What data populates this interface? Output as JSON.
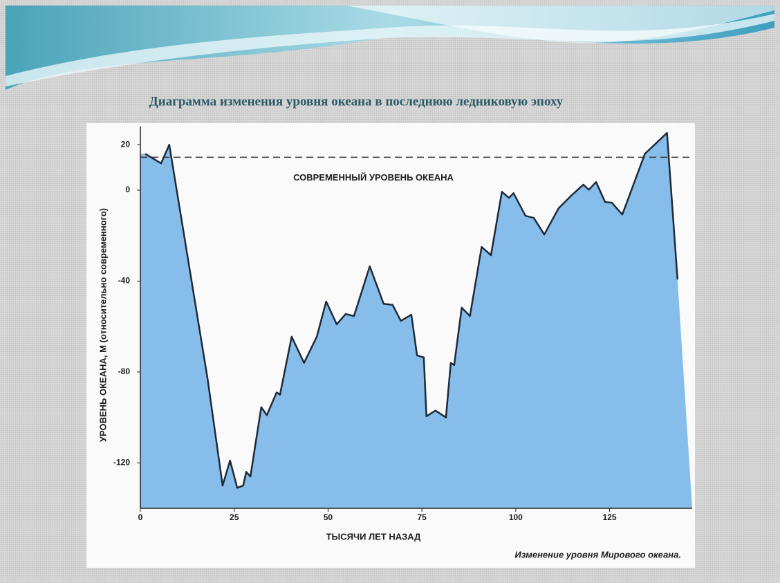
{
  "chart_data": {
    "type": "area",
    "title": "Диаграмма изменения уровня океана в последнюю ледниковую эпоху",
    "x_label": "ТЫСЯЧИ ЛЕТ НАЗАД",
    "y_label": "УРОВЕНЬ ОКЕАНА, М (относительно современного)",
    "caption": "Изменение уровня Мирового океана.",
    "reference_line": {
      "value": 14.5,
      "label": "СОВРЕМЕННЫЙ УРОВЕНЬ ОКЕАНА"
    },
    "x": [
      1.3,
      5.5,
      7.7,
      17.9,
      21.9,
      23.9,
      25.8,
      27.4,
      28.2,
      29.3,
      32.2,
      33.7,
      36.3,
      37.2,
      40.3,
      43.6,
      47,
      49.5,
      52.3,
      54.7,
      56.9,
      61.1,
      64.8,
      67.2,
      69.4,
      72.2,
      73.7,
      75.5,
      76.2,
      78.6,
      81.4,
      82.7,
      83.6,
      85.6,
      87.8,
      90.9,
      93.4,
      96.3,
      98.2,
      99.4,
      102.6,
      104.8,
      107.6,
      111.4,
      114.7,
      118,
      119.5,
      121.4,
      123.8,
      125.6,
      128.4,
      134.4,
      140.3,
      143.1
    ],
    "values": [
      16,
      11.8,
      20,
      -83,
      -130,
      -119,
      -131,
      -130,
      -124,
      -126,
      -95.5,
      -99,
      -89,
      -90,
      -64.5,
      -76,
      -64.5,
      -49,
      -59,
      -54.5,
      -55.4,
      -33.5,
      -50,
      -50.5,
      -57.5,
      -54.8,
      -72.7,
      -73.6,
      -99.5,
      -97,
      -100,
      -76,
      -77,
      -51.7,
      -55.4,
      -25,
      -28.6,
      -0.7,
      -3.4,
      -1.3,
      -11.3,
      -12.2,
      -19.5,
      -8,
      -2.5,
      2.4,
      0.2,
      3.6,
      -5.2,
      -5.5,
      -10.7,
      16,
      25.2,
      -39.3
    ],
    "color": "#86bdea",
    "line_color": "#1f2a38",
    "xlim": [
      0,
      147
    ],
    "ylim": [
      -140,
      28
    ],
    "xticks": [
      0,
      25,
      50,
      75,
      100,
      125
    ],
    "yticks": [
      20,
      0,
      -40,
      -80,
      -120
    ]
  }
}
